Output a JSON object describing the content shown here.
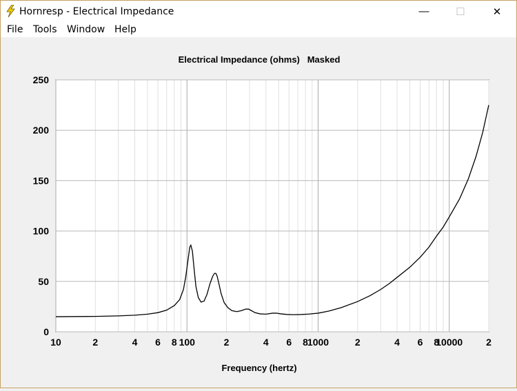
{
  "window": {
    "title": "Hornresp - Electrical Impedance",
    "minimize_glyph": "—",
    "maximize_glyph": "☐",
    "close_glyph": "✕",
    "app_icon": "lightning-bolt-icon",
    "icon_color": "#f5d000"
  },
  "menu": {
    "items": [
      "File",
      "Tools",
      "Window",
      "Help"
    ]
  },
  "chart_data": {
    "type": "line",
    "title": "Electrical Impedance (ohms)   Masked",
    "xlabel": "Frequency (hertz)",
    "ylabel": "",
    "x_scale": "log",
    "xlim": [
      10,
      20000
    ],
    "ylim": [
      0,
      250
    ],
    "yticks": [
      0,
      50,
      100,
      150,
      200,
      250
    ],
    "xtick_labels": [
      {
        "x": 10,
        "label": "10"
      },
      {
        "x": 20,
        "label": "2"
      },
      {
        "x": 40,
        "label": "4"
      },
      {
        "x": 60,
        "label": "6"
      },
      {
        "x": 80,
        "label": "8"
      },
      {
        "x": 100,
        "label": "100"
      },
      {
        "x": 200,
        "label": "2"
      },
      {
        "x": 400,
        "label": "4"
      },
      {
        "x": 600,
        "label": "6"
      },
      {
        "x": 800,
        "label": "8"
      },
      {
        "x": 1000,
        "label": "1000"
      },
      {
        "x": 2000,
        "label": "2"
      },
      {
        "x": 4000,
        "label": "4"
      },
      {
        "x": 6000,
        "label": "6"
      },
      {
        "x": 8000,
        "label": "8"
      },
      {
        "x": 10000,
        "label": "10000"
      },
      {
        "x": 20000,
        "label": "2"
      }
    ],
    "grid": true,
    "line_color": "#000000",
    "series": [
      {
        "x": [
          10,
          20,
          30,
          40,
          50,
          60,
          70,
          80,
          88,
          94,
          98,
          102,
          105,
          107,
          110,
          113,
          117,
          122,
          128,
          135,
          142,
          150,
          157,
          162,
          166,
          170,
          175,
          182,
          192,
          205,
          220,
          240,
          260,
          280,
          295,
          310,
          330,
          360,
          400,
          450,
          480,
          520,
          580,
          650,
          750,
          850,
          1000,
          1200,
          1500,
          2000,
          2500,
          3000,
          3500,
          4000,
          5000,
          6000,
          7000,
          8000,
          9000,
          10000,
          12000,
          14000,
          16000,
          18000,
          20000
        ],
        "y": [
          15,
          15.3,
          15.8,
          16.5,
          17.5,
          19,
          21.5,
          26,
          32,
          42,
          55,
          72,
          84,
          86,
          80,
          64,
          45,
          34,
          29.5,
          30.5,
          37,
          48,
          55,
          58,
          58,
          55,
          48,
          38,
          29,
          24,
          21,
          20,
          21,
          22.5,
          22.5,
          21,
          19,
          17.8,
          17.5,
          18.5,
          18.5,
          17.8,
          17.2,
          17,
          17.2,
          17.6,
          18.5,
          20.5,
          24,
          30,
          36,
          42,
          48,
          54,
          64,
          74,
          84,
          95,
          104,
          114,
          132,
          152,
          174,
          198,
          225
        ]
      }
    ]
  }
}
